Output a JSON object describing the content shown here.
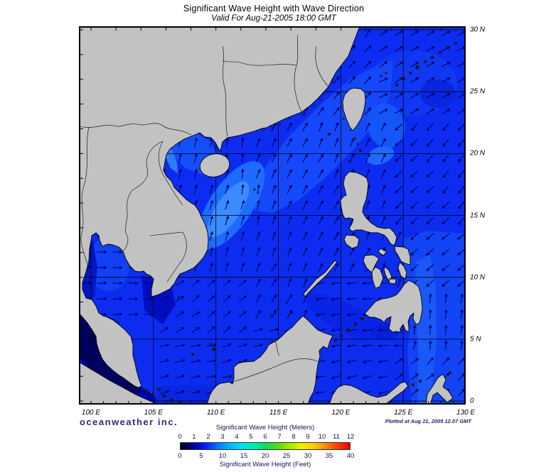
{
  "header": {
    "title": "Significant Wave Height with Wave Direction",
    "subtitle": "Valid For Aug-21-2005 18:00 GMT"
  },
  "map": {
    "lon_labels": [
      "100 E",
      "105 E",
      "110 E",
      "115 E",
      "120 E",
      "125 E",
      "130 E"
    ],
    "lat_labels": [
      "30 N",
      "25 N",
      "20 N",
      "15 N",
      "10 N",
      "5 N",
      "0"
    ],
    "land_color": "#c2c2c2",
    "sea_base_color": "#0c2cf0",
    "calm_sea_color": "#000060",
    "arrow_color": "#000066",
    "grid_color": "#000000"
  },
  "branding": {
    "logo_text": "oceanweather inc.",
    "plotted_text": "Plotted at Aug 21, 2005 12.07 GMT"
  },
  "legend": {
    "meters_label": "Significant Wave Height (Meters)",
    "feet_label": "Significant Wave Height (Feet)",
    "meters_ticks": [
      "0",
      "1",
      "2",
      "3",
      "4",
      "5",
      "6",
      "7",
      "8",
      "9",
      "10",
      "11",
      "12"
    ],
    "feet_ticks": [
      "0",
      "5",
      "10",
      "15",
      "20",
      "25",
      "30",
      "35",
      "40"
    ],
    "gradient_stops": [
      "#000000",
      "#000090",
      "#0018ff",
      "#0070ff",
      "#00b0ff",
      "#00e0f0",
      "#00ecb0",
      "#10dc60",
      "#50dc10",
      "#a0e800",
      "#eef000",
      "#ffcc00",
      "#ff8800",
      "#ff3c00",
      "#e60000"
    ],
    "scale_meters_range": [
      0,
      12
    ],
    "scale_feet_range": [
      0,
      40
    ]
  }
}
